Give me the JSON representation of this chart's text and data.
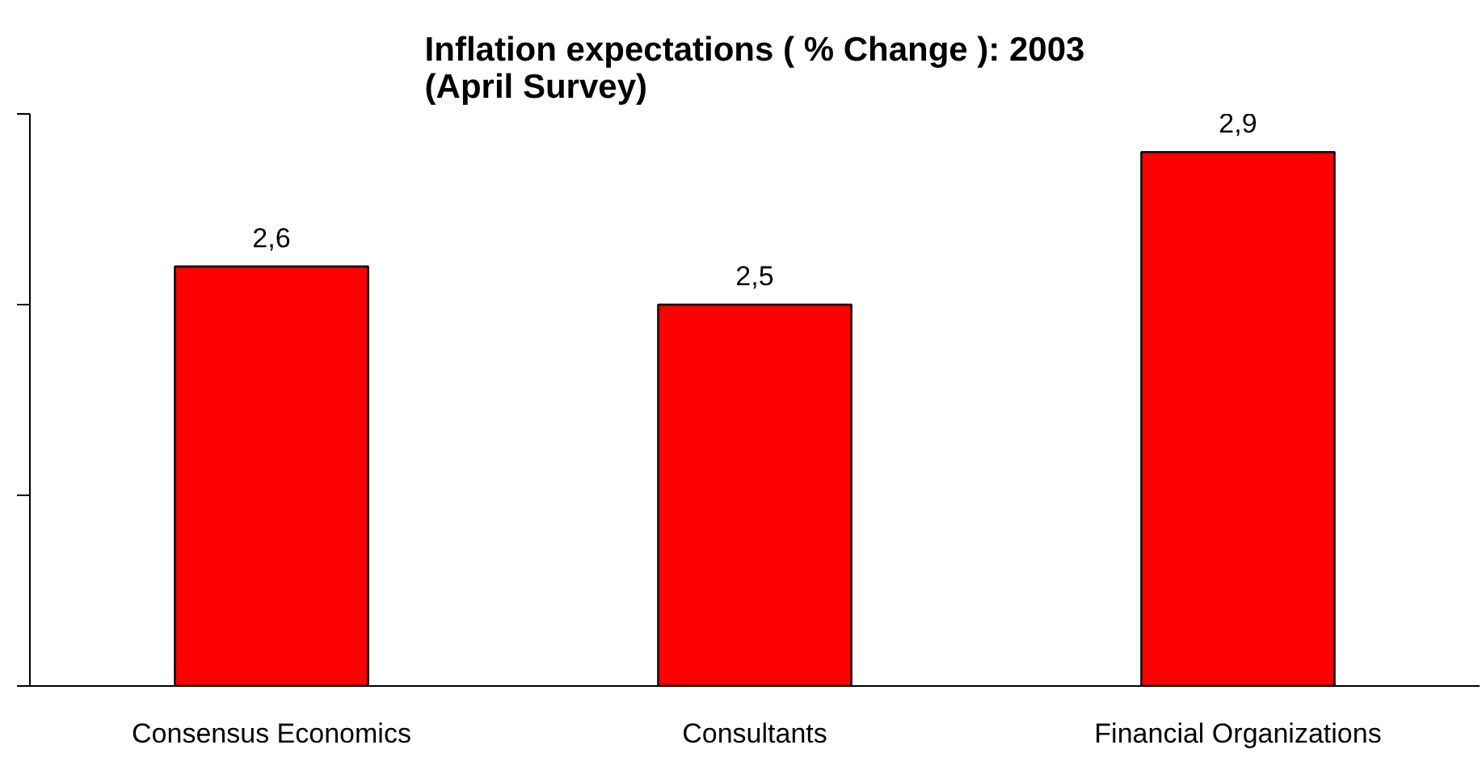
{
  "chart_data": {
    "type": "bar",
    "title": "Inflation expectations ( % Change ): 2003\n(April Survey)",
    "categories": [
      "Consensus Economics",
      "Consultants",
      "Financial Organizations"
    ],
    "values": [
      2.6,
      2.5,
      2.9
    ],
    "value_labels": [
      "2,6",
      "2,5",
      "2,9"
    ],
    "color": "#ff0000",
    "ylim": [
      1.5,
      3.0
    ],
    "yticks": [
      {
        "value": 1.5,
        "label": null
      },
      {
        "value": 2.0,
        "label": null
      },
      {
        "value": 2.5,
        "label": null
      },
      {
        "value": 3.0,
        "label": null
      }
    ],
    "tick_labels": "x",
    "grid": false
  }
}
